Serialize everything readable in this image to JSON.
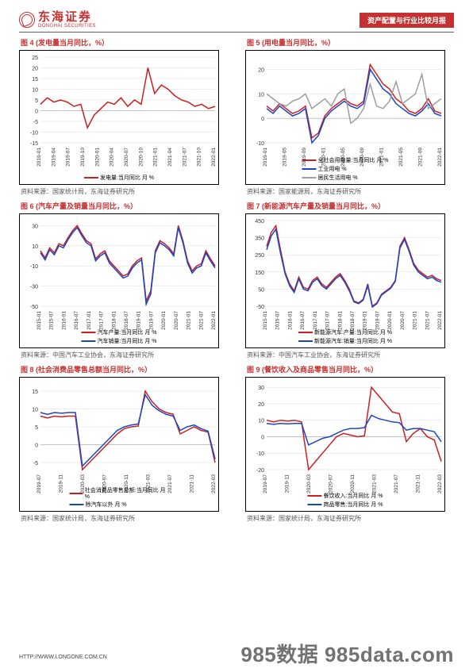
{
  "header": {
    "logo_cn": "东海证券",
    "logo_en": "DONGHAI SECURITIES",
    "tag": "资产配置与行业比较月报"
  },
  "footer": {
    "url": "HTTP://WWW.LONGONE.COM.CN",
    "watermark": "985数据 985data.com"
  },
  "charts": [
    {
      "id": 4,
      "title": "图 4   (发电量当月同比，%）",
      "source": "资料来源：国家统计局，东海证券研究所",
      "type": "line",
      "x": [
        "2019-01",
        "2019-04",
        "2019-07",
        "2019-10",
        "2020-01",
        "2020-04",
        "2020-07",
        "2020-10",
        "2021-01",
        "2021-04",
        "2021-07",
        "2021-10",
        "2022-01"
      ],
      "ylim": [
        -15,
        25
      ],
      "yticks": [
        -15,
        -10,
        -5,
        0,
        5,
        10,
        15,
        20,
        25
      ],
      "series": [
        {
          "name": "发电量:当月同比 月 %",
          "color": "#cc1e1e",
          "width": 1.5,
          "y": [
            3,
            6,
            4,
            5,
            4,
            2,
            3,
            -8,
            -2,
            1,
            4,
            3,
            6,
            2,
            5,
            3,
            20,
            8,
            12,
            10,
            7,
            5,
            4,
            2,
            3,
            1,
            2
          ]
        }
      ],
      "legend_single": true
    },
    {
      "id": 5,
      "title": "图 5   (用电量当月同比，%）",
      "source": "资料来源：国家能源局，东海证券研究所",
      "type": "line",
      "x": [
        "2019-01",
        "2019-05",
        "2019-09",
        "2020-01",
        "2020-05",
        "2020-09",
        "2021-01",
        "2021-05",
        "2021-09",
        "2022-01"
      ],
      "ylim": [
        -10,
        25
      ],
      "yticks": [
        -10,
        0,
        10,
        20
      ],
      "series": [
        {
          "name": "全社会用电量:当月同比 月 %",
          "color": "#cc1e1e",
          "width": 1.5,
          "y": [
            5,
            3,
            6,
            4,
            2,
            3,
            5,
            -8,
            -6,
            1,
            4,
            6,
            8,
            6,
            5,
            7,
            22,
            18,
            14,
            12,
            8,
            6,
            3,
            2,
            4,
            8,
            3,
            2
          ]
        },
        {
          "name": "工业用电  %",
          "color": "#1846c9",
          "width": 1.5,
          "y": [
            4,
            2,
            5,
            3,
            1,
            2,
            4,
            -10,
            -7,
            0,
            3,
            5,
            7,
            5,
            4,
            6,
            20,
            16,
            12,
            10,
            6,
            4,
            2,
            1,
            3,
            6,
            2,
            1
          ]
        },
        {
          "name": "居民生活用电  %",
          "color": "#9e9e9e",
          "width": 1.5,
          "y": [
            10,
            8,
            6,
            5,
            7,
            8,
            10,
            4,
            6,
            8,
            5,
            10,
            12,
            -2,
            0,
            4,
            14,
            5,
            4,
            7,
            15,
            6,
            8,
            10,
            18,
            4,
            6,
            8
          ]
        }
      ]
    },
    {
      "id": 6,
      "title": "图 6   (汽车产量及销量当月同比，%）",
      "source": "资料来源：中国汽车工业协会，东海证券研究所",
      "type": "line",
      "x": [
        "2015-01",
        "2015-07",
        "2016-01",
        "2016-07",
        "2017-01",
        "2017-07",
        "2018-01",
        "2018-07",
        "2019-01",
        "2019-07",
        "2020-01",
        "2020-07",
        "2021-01",
        "2021-07",
        "2022-01"
      ],
      "ylim": [
        -50,
        35
      ],
      "yticks": [
        -50,
        -30,
        -10,
        10,
        30
      ],
      "series": [
        {
          "name": "汽车产量:当月同比 月 %",
          "color": "#cc1e1e",
          "width": 1.5,
          "y": [
            5,
            -2,
            8,
            3,
            12,
            10,
            18,
            25,
            30,
            22,
            15,
            12,
            -3,
            2,
            5,
            -5,
            -10,
            -15,
            -20,
            -18,
            -10,
            -5,
            -2,
            -45,
            -35,
            5,
            15,
            12,
            8,
            2,
            30,
            15,
            -5,
            -15,
            -10,
            -8,
            5,
            -3,
            -10
          ]
        },
        {
          "name": "汽车销量:当月同比 月 %",
          "color": "#1846c9",
          "width": 1.5,
          "y": [
            3,
            -4,
            6,
            1,
            10,
            8,
            16,
            23,
            28,
            20,
            13,
            10,
            -5,
            0,
            3,
            -7,
            -12,
            -17,
            -22,
            -20,
            -12,
            -7,
            -4,
            -48,
            -38,
            3,
            13,
            10,
            6,
            0,
            28,
            13,
            -7,
            -17,
            -12,
            -10,
            3,
            -5,
            -12
          ]
        }
      ]
    },
    {
      "id": 7,
      "title": "图 7   (新能源汽车产量及销量当月同比，%）",
      "source": "资料来源：中国汽车工业协会，东海证券研究所",
      "type": "line",
      "x": [
        "2015-01",
        "2015-07",
        "2016-01",
        "2016-07",
        "2017-01",
        "2017-07",
        "2018-01",
        "2018-07",
        "2019-01",
        "2019-07",
        "2020-01",
        "2020-07",
        "2021-01",
        "2021-07",
        "2022-01"
      ],
      "ylim": [
        -50,
        450
      ],
      "yticks": [
        -50,
        50,
        150,
        250,
        350,
        450
      ],
      "series": [
        {
          "name": "新能源汽车:产量:当月同比 月 %",
          "color": "#cc1e1e",
          "width": 1.5,
          "y": [
            300,
            380,
            420,
            280,
            150,
            80,
            40,
            120,
            60,
            50,
            100,
            120,
            80,
            60,
            90,
            120,
            140,
            100,
            50,
            -20,
            -30,
            -10,
            80,
            -50,
            -30,
            20,
            40,
            60,
            100,
            300,
            350,
            280,
            200,
            160,
            140,
            120,
            130,
            110,
            100
          ]
        },
        {
          "name": "新能源汽车:销量:当月同比 月 %",
          "color": "#1846c9",
          "width": 1.5,
          "y": [
            280,
            360,
            400,
            260,
            140,
            70,
            30,
            110,
            50,
            40,
            90,
            110,
            70,
            50,
            80,
            110,
            130,
            90,
            40,
            -25,
            -35,
            -15,
            70,
            -55,
            -35,
            15,
            35,
            55,
            95,
            290,
            340,
            270,
            190,
            150,
            130,
            110,
            120,
            100,
            90
          ]
        }
      ]
    },
    {
      "id": 8,
      "title": "图 8   (社会消费品零售总额当月同比，%）",
      "source": "资料来源：国家统计局，东海证券研究所",
      "type": "line",
      "x": [
        "2019-07",
        "2019-11",
        "2020-03",
        "2020-07",
        "2020-11",
        "2021-03",
        "2021-07",
        "2021-11",
        "2022-03"
      ],
      "ylim": [
        -7,
        17
      ],
      "yticks": [
        -5,
        0,
        5,
        10,
        15
      ],
      "series": [
        {
          "name": "社会消费品零售总额:当月同比 月 %",
          "color": "#cc1e1e",
          "width": 1.5,
          "y": [
            8,
            7.5,
            8,
            7.8,
            8,
            8,
            -7,
            -5,
            -3,
            -1,
            1,
            3,
            4.5,
            5,
            5.2,
            15,
            12,
            10,
            9,
            8.5,
            3,
            4,
            5,
            4,
            3.5,
            -5
          ]
        },
        {
          "name": "除汽车以外  月 %",
          "color": "#1846c9",
          "width": 1.5,
          "y": [
            9,
            8.5,
            9,
            8.8,
            9,
            9,
            -6,
            -4,
            -2,
            0,
            2,
            4,
            5,
            5.5,
            5.8,
            14,
            11,
            9.5,
            8.5,
            8,
            4,
            5,
            5.5,
            4.5,
            3.8,
            -4
          ]
        }
      ]
    },
    {
      "id": 9,
      "title": "图 9   (餐饮收入及商品零售当月同比，%）",
      "source": "资料来源：国家统计局，东海证券研究所",
      "type": "line",
      "x": [
        "2019-07",
        "2019-11",
        "2020-03",
        "2020-07",
        "2020-11",
        "2021-03",
        "2021-07",
        "2021-11",
        "2022-03"
      ],
      "ylim": [
        -20,
        32
      ],
      "yticks": [
        -20,
        -10,
        0,
        10,
        20,
        30
      ],
      "series": [
        {
          "name": "餐饮收入:当月同比 月 %",
          "color": "#cc1e1e",
          "width": 1.5,
          "y": [
            10,
            9,
            10,
            9.5,
            10,
            9,
            -20,
            -15,
            -10,
            -5,
            0,
            2,
            1,
            0,
            0.5,
            30,
            25,
            20,
            15,
            14,
            -3,
            2,
            5,
            0,
            -2,
            -15
          ]
        },
        {
          "name": "商品零售:当月同比 月 %",
          "color": "#1846c9",
          "width": 1.5,
          "y": [
            8,
            7.5,
            8,
            7.8,
            8,
            8,
            -5,
            -3,
            -1,
            0,
            2,
            4,
            5,
            5,
            5.5,
            13,
            11,
            10,
            9,
            8.5,
            4,
            5,
            5,
            4,
            3,
            -3
          ]
        }
      ]
    }
  ]
}
